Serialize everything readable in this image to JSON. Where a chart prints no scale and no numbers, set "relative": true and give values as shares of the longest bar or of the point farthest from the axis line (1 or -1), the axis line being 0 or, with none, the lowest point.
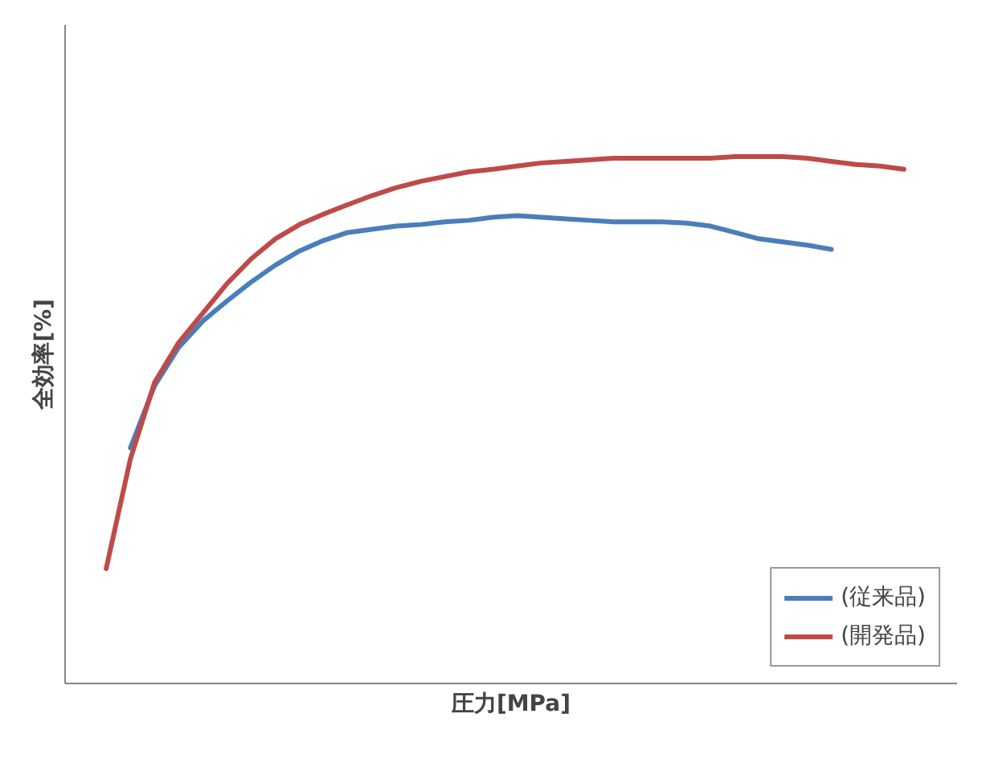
{
  "chart_data": {
    "type": "line",
    "relative": true,
    "xlabel": "圧力[MPa]",
    "ylabel": "全効率[%]",
    "legend": "bottom right",
    "categories": [
      null,
      null,
      null,
      null,
      null,
      null,
      null,
      null,
      null,
      null,
      null,
      null,
      null,
      null,
      null,
      null,
      null,
      null,
      null,
      null,
      null,
      null,
      null,
      null,
      null,
      null,
      null,
      null,
      null,
      null,
      null,
      null,
      null,
      null
    ],
    "series": [
      {
        "name": "(従来品)",
        "color": "#4a7ebb",
        "values": [
          null,
          0.447,
          0.565,
          0.638,
          0.688,
          0.726,
          0.762,
          0.794,
          0.821,
          0.841,
          0.856,
          0.862,
          0.868,
          0.871,
          0.876,
          0.879,
          0.885,
          0.888,
          0.885,
          0.882,
          0.879,
          0.876,
          0.876,
          0.876,
          0.874,
          0.868,
          0.856,
          0.844,
          0.838,
          0.832,
          0.824,
          null,
          null,
          null
        ]
      },
      {
        "name": "(開発品)",
        "color": "#be4b48",
        "values": [
          0.218,
          0.426,
          0.571,
          0.647,
          0.703,
          0.759,
          0.806,
          0.844,
          0.871,
          0.891,
          0.909,
          0.926,
          0.941,
          0.953,
          0.962,
          0.971,
          0.976,
          0.982,
          0.988,
          0.991,
          0.994,
          0.997,
          0.997,
          0.997,
          0.997,
          0.997,
          1,
          1,
          1,
          0.997,
          0.991,
          0.985,
          0.982,
          0.976
        ]
      }
    ]
  }
}
